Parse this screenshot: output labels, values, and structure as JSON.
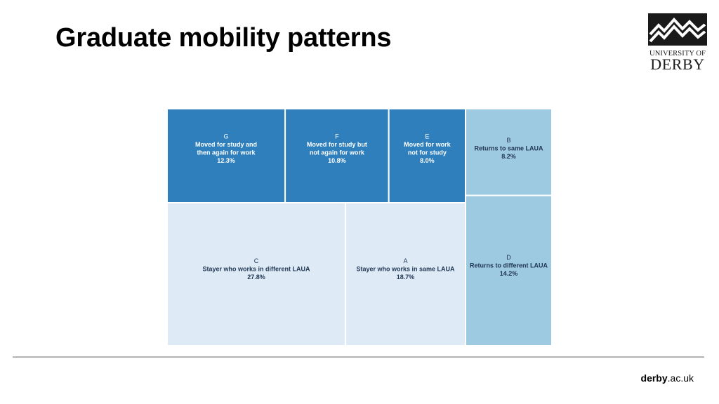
{
  "slide": {
    "title": "Graduate mobility patterns"
  },
  "logo": {
    "line1": "UNIVERSITY OF",
    "line2": "DERBY"
  },
  "footer": {
    "url_bold": "derby",
    "url_rest": ".ac.uk"
  },
  "colors": {
    "dark_blue": "#2f7fbd",
    "medium_blue": "#9ecae1",
    "light_blue": "#deebf7",
    "divider": "#b4b4b4"
  },
  "chart_data": {
    "type": "treemap",
    "title": "",
    "cells": [
      {
        "code": "G",
        "lines": [
          "Moved for study and",
          "then again for work"
        ],
        "percent": "12.3%",
        "value": 12.3,
        "shade": "dark"
      },
      {
        "code": "F",
        "lines": [
          "Moved for study but",
          "not again for work"
        ],
        "percent": "10.8%",
        "value": 10.8,
        "shade": "dark"
      },
      {
        "code": "E",
        "lines": [
          "Moved for work",
          "not for study"
        ],
        "percent": "8.0%",
        "value": 8.0,
        "shade": "dark"
      },
      {
        "code": "B",
        "lines": [
          "Returns to same LAUA"
        ],
        "percent": "8.2%",
        "value": 8.2,
        "shade": "medium"
      },
      {
        "code": "C",
        "lines": [
          "Stayer who works in different LAUA"
        ],
        "percent": "27.8%",
        "value": 27.8,
        "shade": "light"
      },
      {
        "code": "A",
        "lines": [
          "Stayer who works in same LAUA"
        ],
        "percent": "18.7%",
        "value": 18.7,
        "shade": "light"
      },
      {
        "code": "D",
        "lines": [
          "Returns to different LAUA"
        ],
        "percent": "14.2%",
        "value": 14.2,
        "shade": "medium"
      }
    ]
  }
}
